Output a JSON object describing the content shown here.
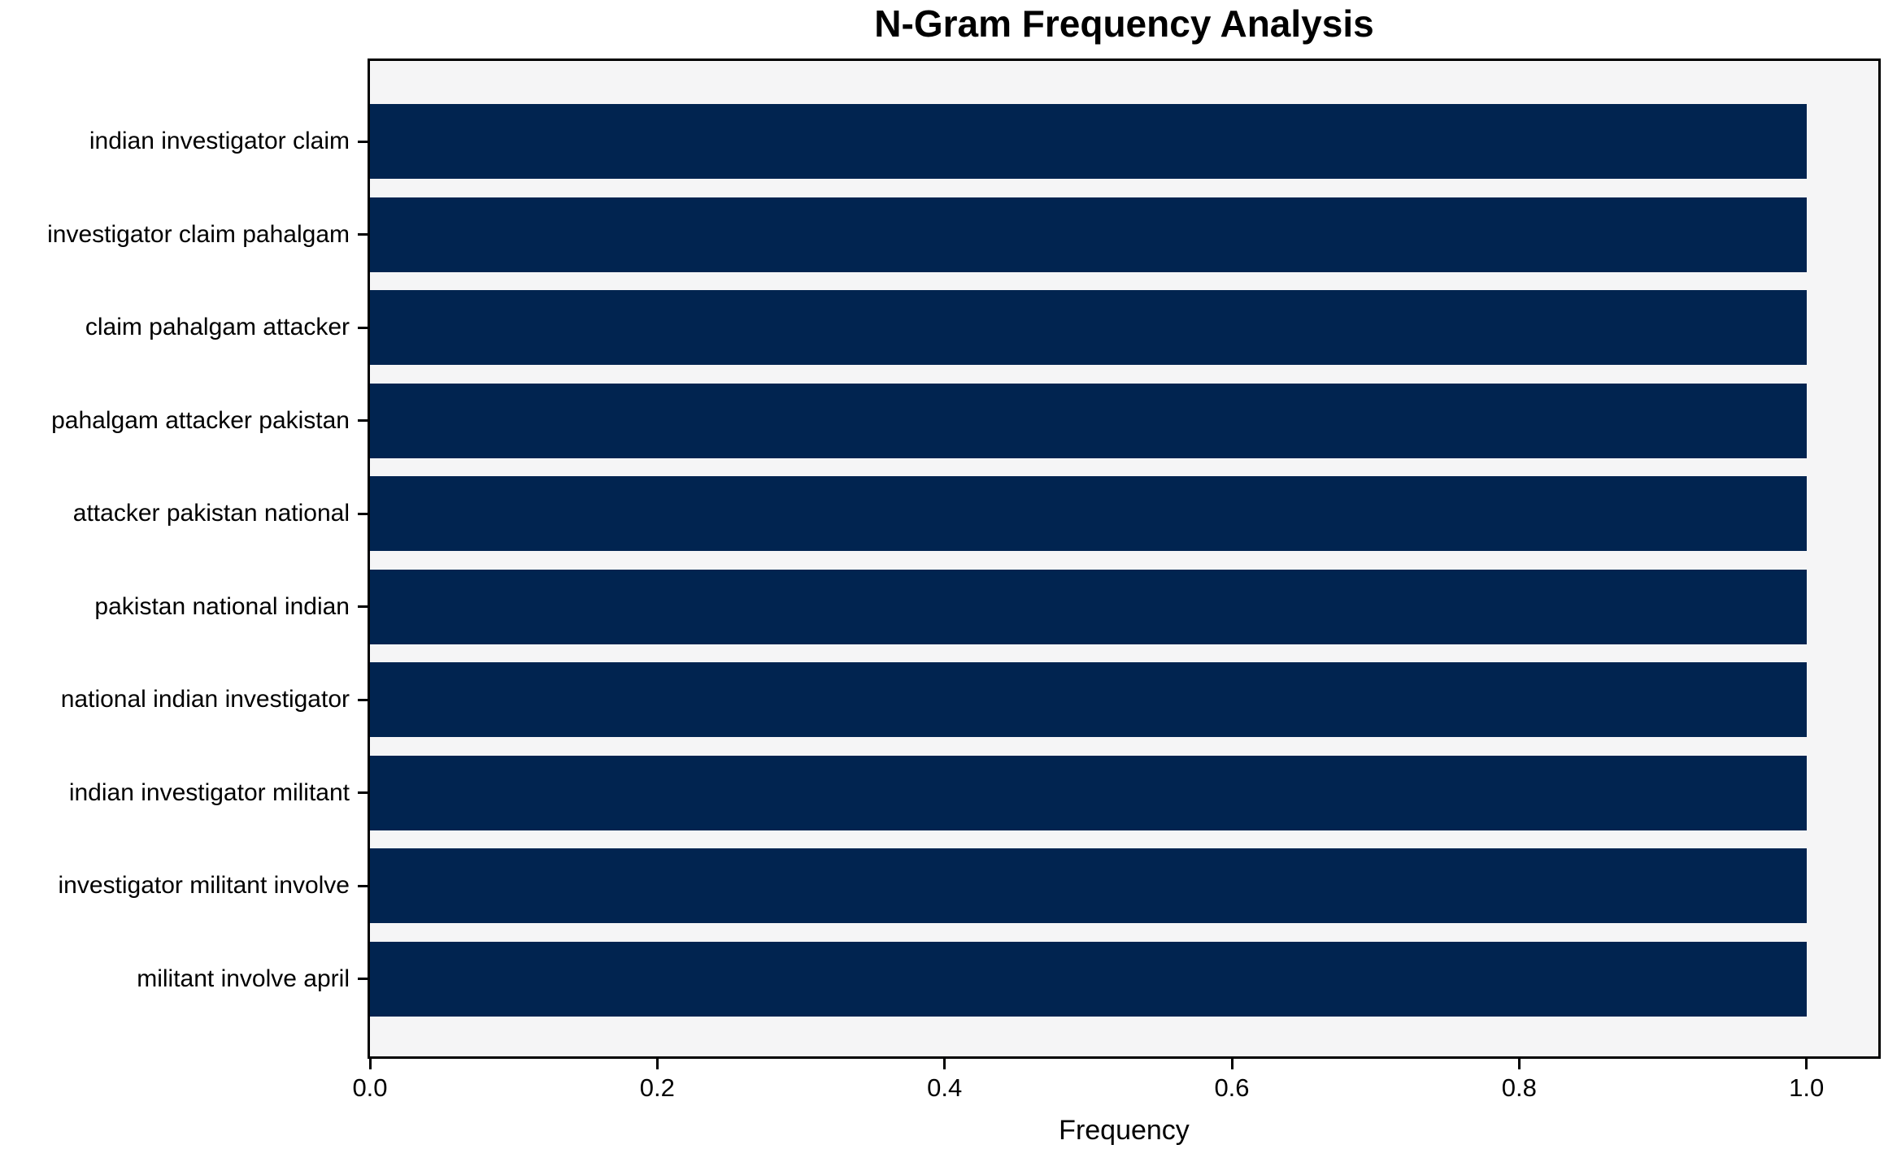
{
  "chart_data": {
    "type": "bar",
    "orientation": "horizontal",
    "title": "N-Gram Frequency Analysis",
    "xlabel": "Frequency",
    "ylabel": "",
    "categories": [
      "indian investigator claim",
      "investigator claim pahalgam",
      "claim pahalgam attacker",
      "pahalgam attacker pakistan",
      "attacker pakistan national",
      "pakistan national indian",
      "national indian investigator",
      "indian investigator militant",
      "investigator militant involve",
      "militant involve april"
    ],
    "values": [
      1.0,
      1.0,
      1.0,
      1.0,
      1.0,
      1.0,
      1.0,
      1.0,
      1.0,
      1.0
    ],
    "xticks": [
      0.0,
      0.2,
      0.4,
      0.6,
      0.8,
      1.0
    ],
    "xtick_labels": [
      "0.0",
      "0.2",
      "0.4",
      "0.6",
      "0.8",
      "1.0"
    ],
    "xlim": [
      0,
      1.05
    ],
    "grid": false,
    "legend": null,
    "colors": {
      "bar": "#012450",
      "plot_background": "#f5f5f6",
      "figure_background": "#ffffff",
      "spine": "#000000",
      "text": "#000000"
    }
  }
}
